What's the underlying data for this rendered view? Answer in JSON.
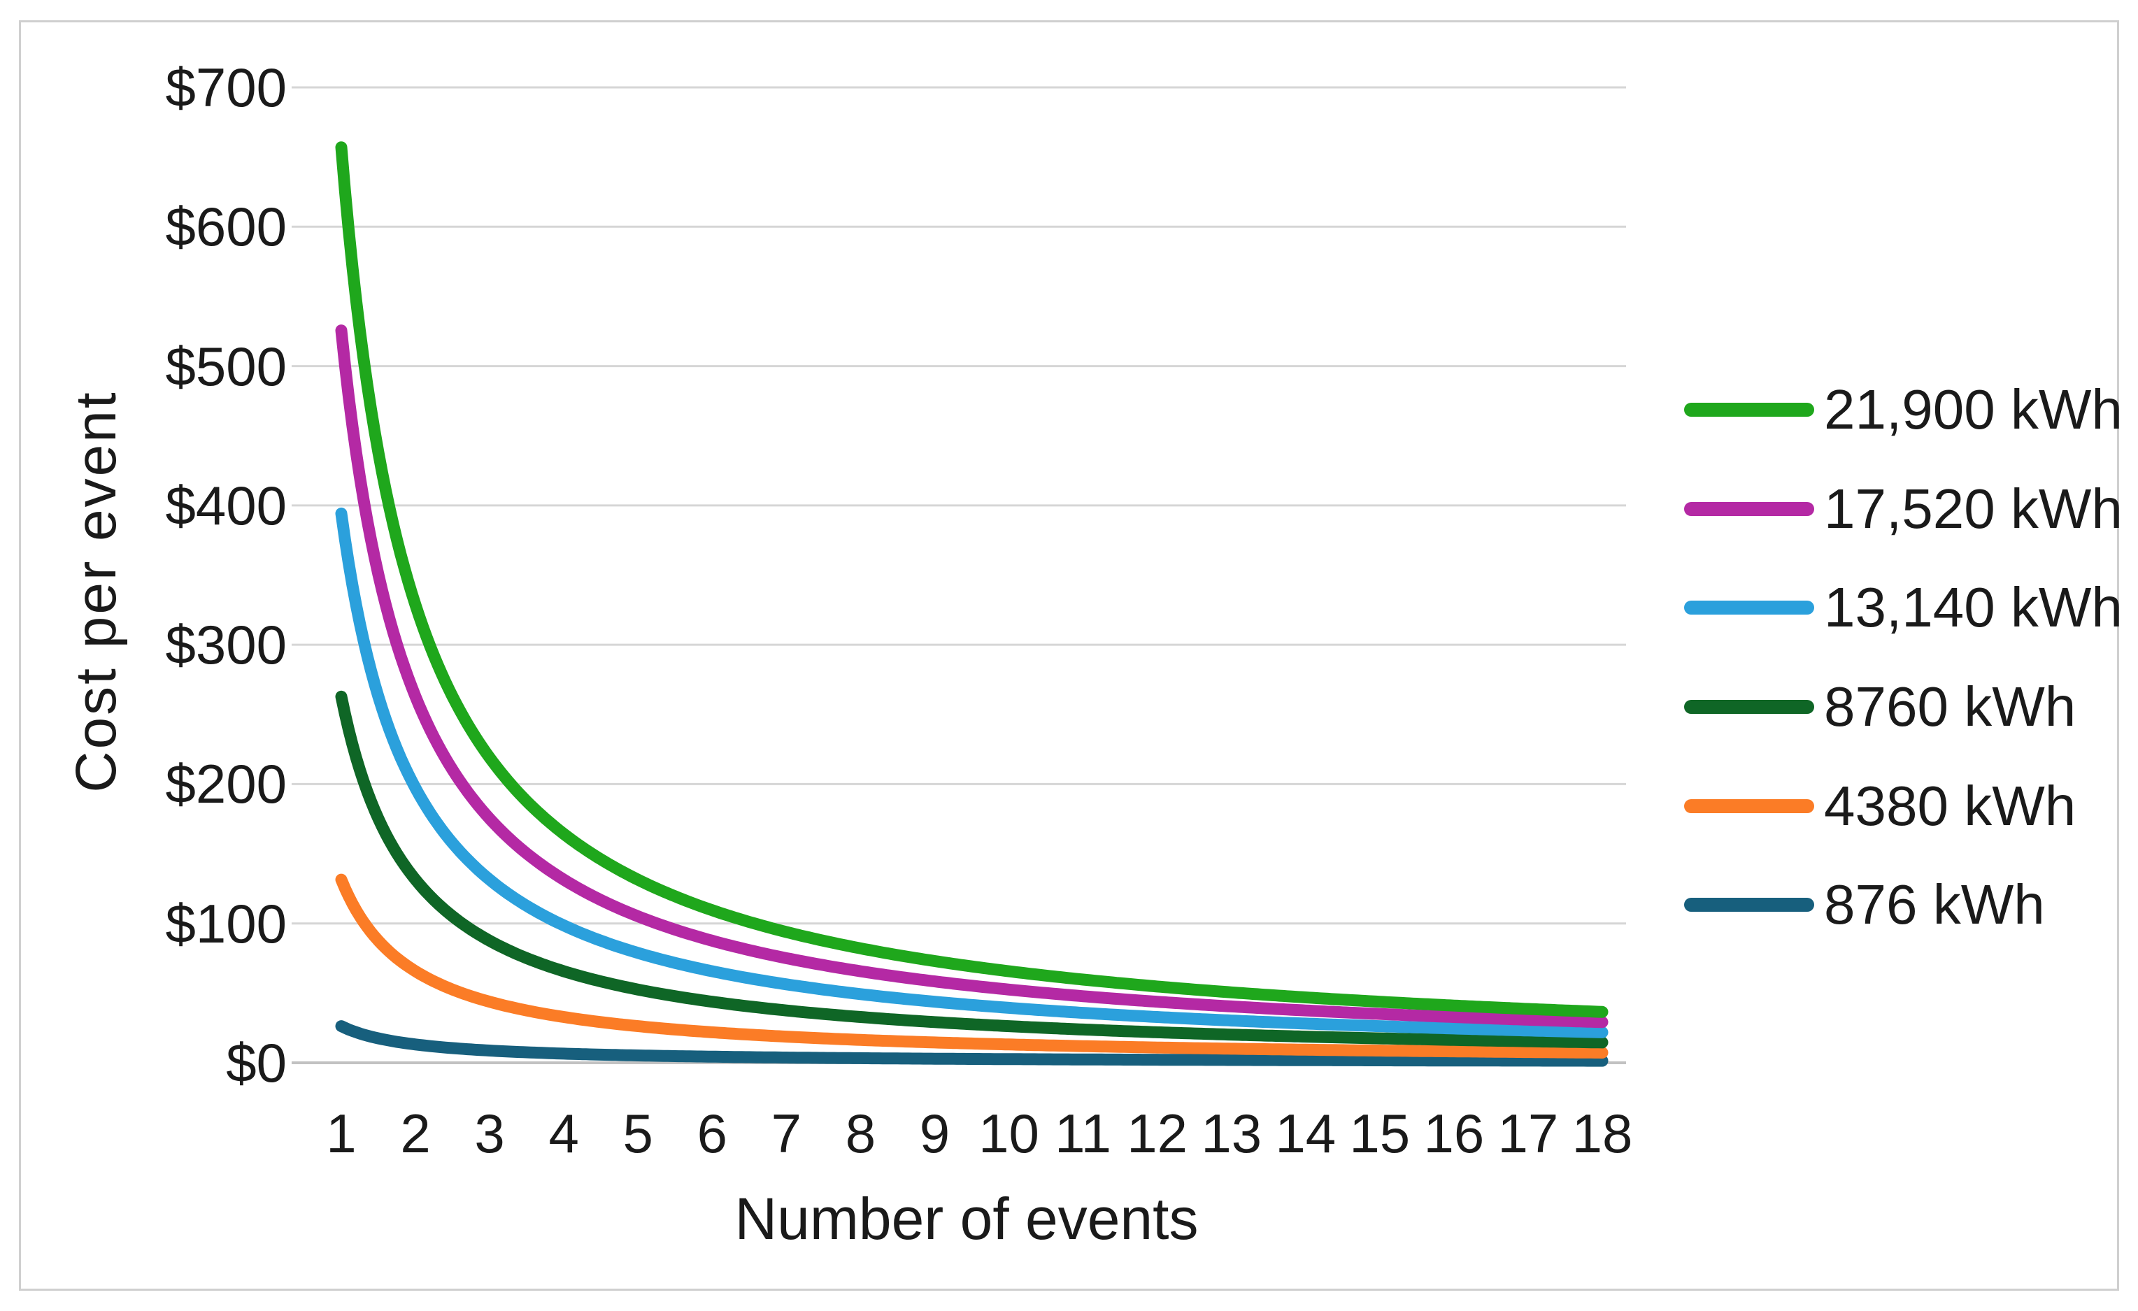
{
  "figure": {
    "background": "#ffffff",
    "frame_border_color": "#cfcfcf",
    "gridline_color": "#d6d6d6",
    "zero_axis_color": "#c2c2c2",
    "text_color": "#1a1a1a"
  },
  "chart_data": {
    "type": "line",
    "title": "",
    "xlabel": "Number of events",
    "ylabel": "Cost per event",
    "x": [
      1,
      2,
      3,
      4,
      5,
      6,
      7,
      8,
      9,
      10,
      11,
      12,
      13,
      14,
      15,
      16,
      17,
      18
    ],
    "x_tick_labels": [
      "1",
      "2",
      "3",
      "4",
      "5",
      "6",
      "7",
      "8",
      "9",
      "10",
      "11",
      "12",
      "13",
      "14",
      "15",
      "16",
      "17",
      "18"
    ],
    "y_ticks": [
      {
        "value": 0,
        "label": "$0"
      },
      {
        "value": 100,
        "label": "$100"
      },
      {
        "value": 200,
        "label": "$200"
      },
      {
        "value": 300,
        "label": "$300"
      },
      {
        "value": 400,
        "label": "$400"
      },
      {
        "value": 500,
        "label": "$500"
      },
      {
        "value": 600,
        "label": "$600"
      },
      {
        "value": 700,
        "label": "$700"
      }
    ],
    "ylim": [
      0,
      700
    ],
    "grid": "horizontal",
    "legend_position": "right",
    "line_shape": "smooth-hyperbolic",
    "series": [
      {
        "name": "21,900 kWh",
        "color": "#1fa71c",
        "values": [
          657.0,
          328.5,
          219.0,
          164.3,
          131.4,
          109.5,
          93.9,
          82.1,
          73.0,
          65.7,
          59.7,
          54.8,
          50.5,
          46.9,
          43.8,
          41.1,
          38.6,
          36.5
        ]
      },
      {
        "name": "17,520 kWh",
        "color": "#b429a4",
        "values": [
          525.6,
          262.8,
          175.2,
          131.4,
          105.1,
          87.6,
          75.1,
          65.7,
          58.4,
          52.6,
          47.8,
          43.8,
          40.4,
          37.5,
          35.0,
          32.9,
          30.9,
          29.2
        ]
      },
      {
        "name": "13,140 kWh",
        "color": "#2ba0dc",
        "values": [
          394.2,
          197.1,
          131.4,
          98.6,
          78.8,
          65.7,
          56.3,
          49.3,
          43.8,
          39.4,
          35.8,
          32.9,
          30.3,
          28.2,
          26.3,
          24.6,
          23.2,
          21.9
        ]
      },
      {
        "name": "8760 kWh",
        "color": "#0f6626",
        "values": [
          262.8,
          131.4,
          87.6,
          65.7,
          52.6,
          43.8,
          37.5,
          32.9,
          29.2,
          26.3,
          23.9,
          21.9,
          20.2,
          18.8,
          17.5,
          16.4,
          15.5,
          14.6
        ]
      },
      {
        "name": "4380 kWh",
        "color": "#fb7c26",
        "values": [
          131.4,
          65.7,
          43.8,
          32.9,
          26.3,
          21.9,
          18.8,
          16.4,
          14.6,
          13.1,
          11.9,
          11.0,
          10.1,
          9.4,
          8.8,
          8.2,
          7.7,
          7.3
        ]
      },
      {
        "name": "876 kWh",
        "color": "#175f7d",
        "values": [
          26.3,
          13.1,
          8.8,
          6.6,
          5.3,
          4.4,
          3.8,
          3.3,
          2.9,
          2.6,
          2.4,
          2.2,
          2.0,
          1.9,
          1.8,
          1.6,
          1.5,
          1.5
        ]
      }
    ]
  },
  "layout_values": {
    "legend_entry_centers_y": [
      586,
      728,
      869,
      1011,
      1153,
      1294
    ]
  }
}
